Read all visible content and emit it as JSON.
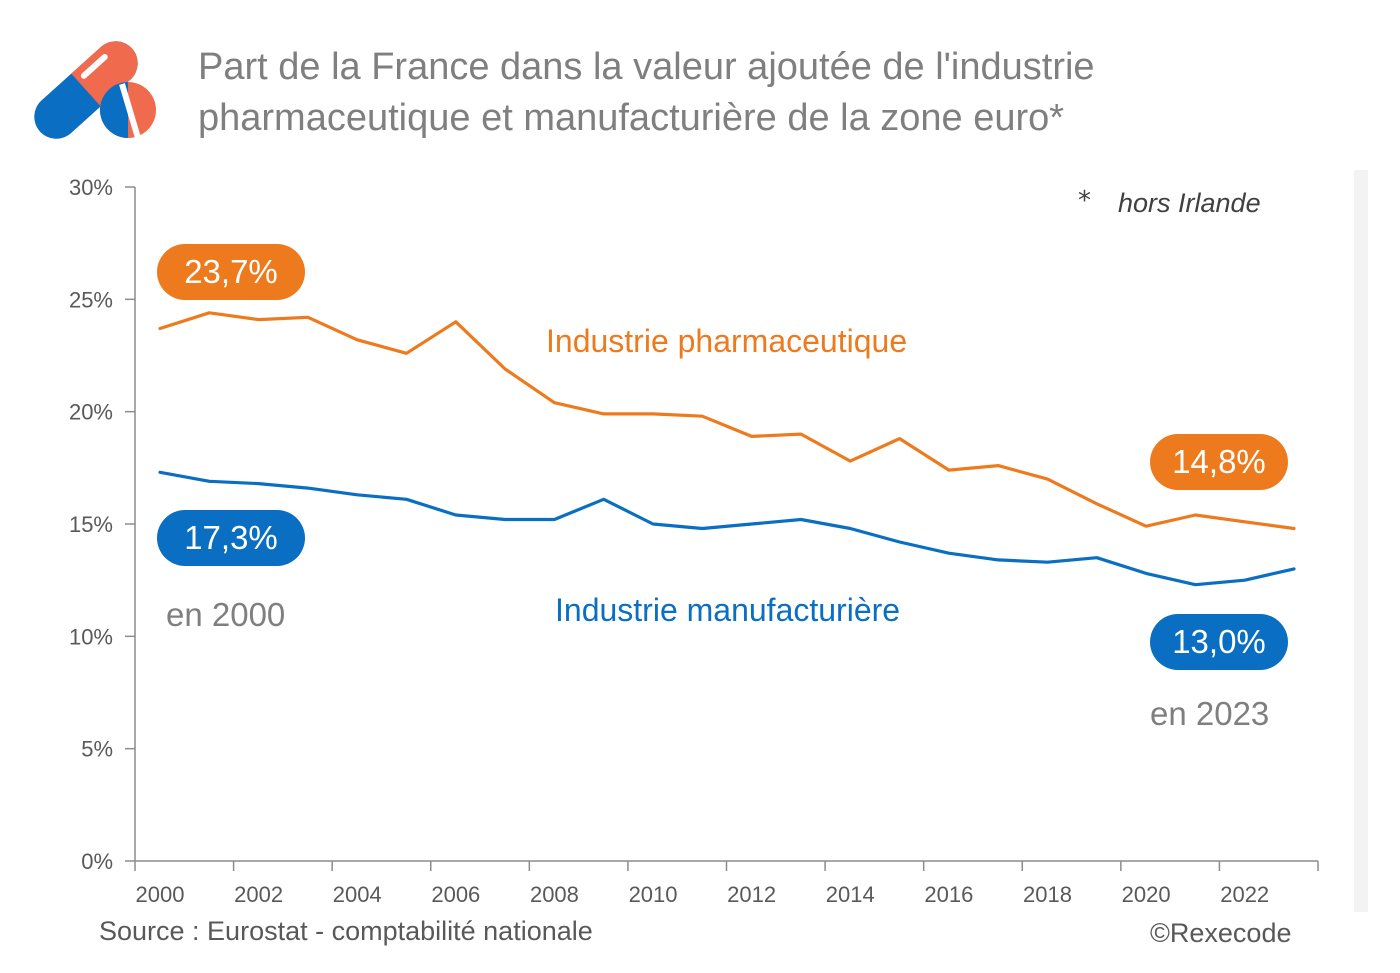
{
  "title_line1": "Part de la France dans la valeur ajoutée de l'industrie",
  "title_line2": "pharmaceutique et manufacturière de la zone euro*",
  "note_star": "*",
  "note_text": "hors Irlande",
  "source": "Source : Eurostat - comptabilité nationale",
  "copyright": "©Rexecode",
  "annotations": {
    "pharma_start": "23,7%",
    "manuf_start": "17,3%",
    "start_year": "en 2000",
    "pharma_end": "14,8%",
    "manuf_end": "13,0%",
    "end_year": "en 2023"
  },
  "colors": {
    "pharma": "#ee7a1e",
    "manuf": "#0a6fc2",
    "axis": "#7f7f7f",
    "text": "#595959"
  },
  "chart_data": {
    "type": "line",
    "title": "Part de la France dans la valeur ajoutée de l'industrie pharmaceutique et manufacturière de la zone euro*",
    "xlabel": "",
    "ylabel": "",
    "ylim": [
      0,
      30
    ],
    "yticks": [
      0,
      5,
      10,
      15,
      20,
      25,
      30
    ],
    "ytick_labels": [
      "0%",
      "5%",
      "10%",
      "15%",
      "20%",
      "25%",
      "30%"
    ],
    "xlim": [
      2000,
      2023
    ],
    "xtick_labels": [
      "2000",
      "2002",
      "2004",
      "2006",
      "2008",
      "2010",
      "2012",
      "2014",
      "2016",
      "2018",
      "2020",
      "2022"
    ],
    "x": [
      2000,
      2001,
      2002,
      2003,
      2004,
      2005,
      2006,
      2007,
      2008,
      2009,
      2010,
      2011,
      2012,
      2013,
      2014,
      2015,
      2016,
      2017,
      2018,
      2019,
      2020,
      2021,
      2022,
      2023
    ],
    "series": [
      {
        "name": "Industrie pharmaceutique",
        "color": "#ee7a1e",
        "values": [
          23.7,
          24.4,
          24.1,
          24.2,
          23.2,
          22.6,
          24.0,
          21.9,
          20.4,
          19.9,
          19.9,
          19.8,
          18.9,
          19.0,
          17.8,
          18.8,
          17.4,
          17.6,
          17.0,
          15.9,
          14.9,
          15.4,
          15.1,
          14.8
        ]
      },
      {
        "name": "Industrie manufacturière",
        "color": "#0a6fc2",
        "values": [
          17.3,
          16.9,
          16.8,
          16.6,
          16.3,
          16.1,
          15.4,
          15.2,
          15.2,
          16.1,
          15.0,
          14.8,
          15.0,
          15.2,
          14.8,
          14.2,
          13.7,
          13.4,
          13.3,
          13.5,
          12.8,
          12.3,
          12.5,
          13.0
        ]
      }
    ]
  }
}
